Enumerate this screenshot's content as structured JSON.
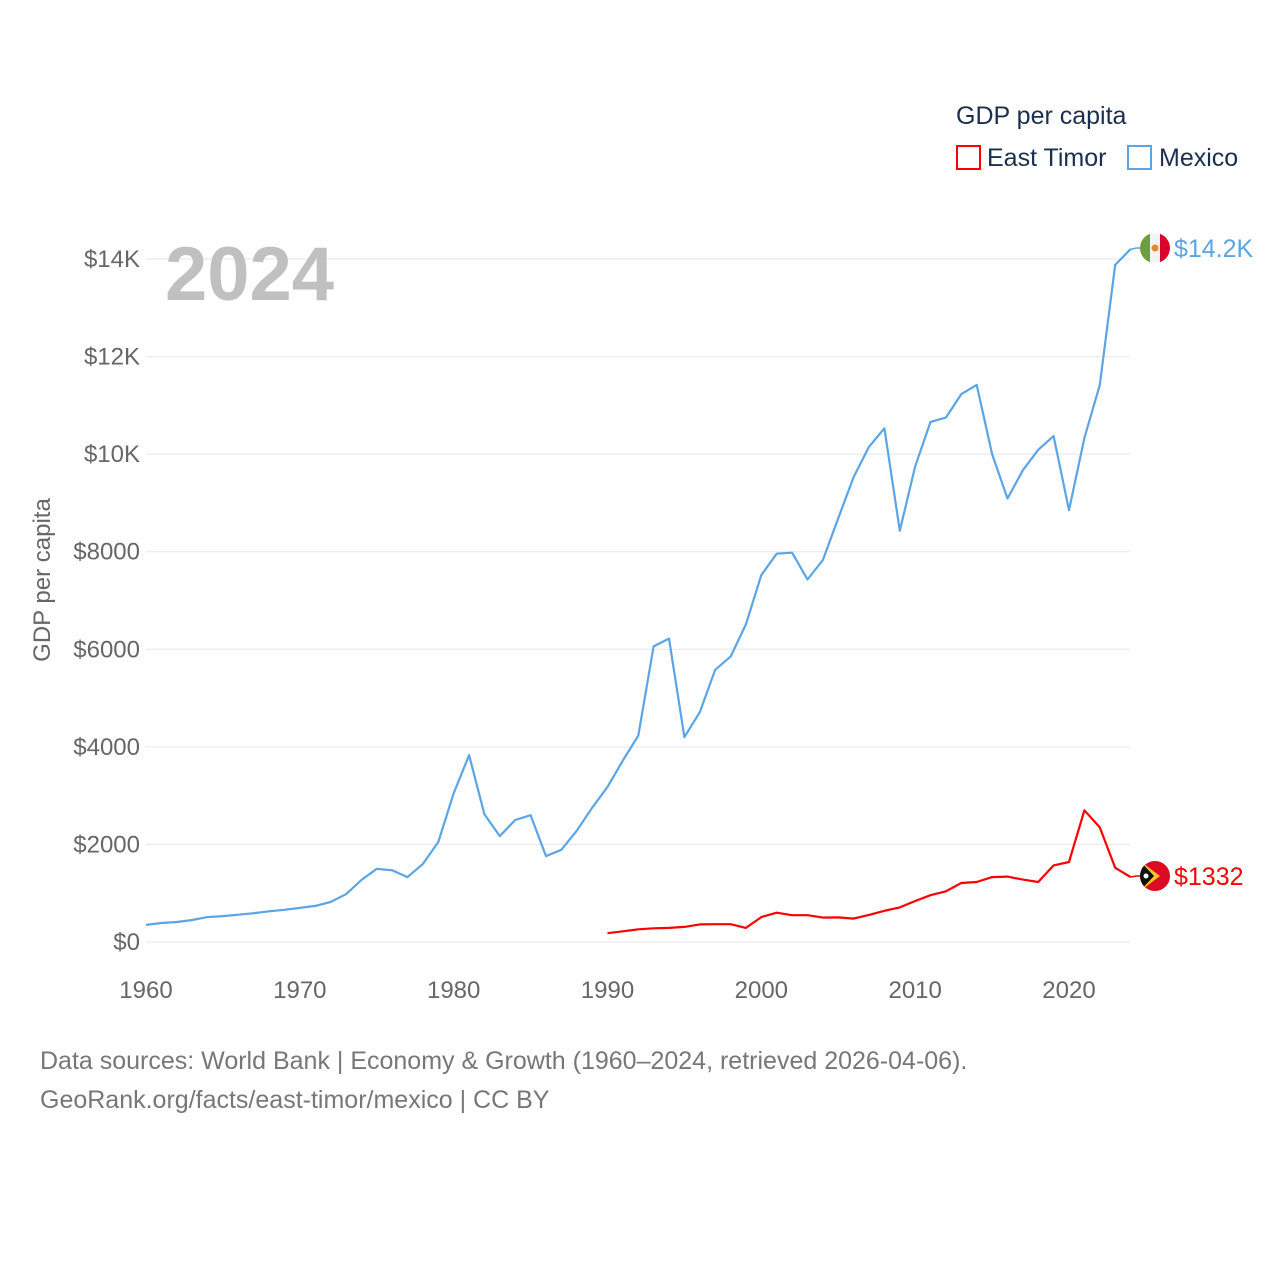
{
  "chart_data": {
    "type": "line",
    "title": "GDP per capita",
    "year_label": "2024",
    "xlabel": "",
    "ylabel": "GDP per capita",
    "xlim": [
      1960,
      2024
    ],
    "ylim": [
      0,
      14500
    ],
    "x_ticks": [
      1960,
      1970,
      1980,
      1990,
      2000,
      2010,
      2020
    ],
    "y_ticks": [
      0,
      2000,
      4000,
      6000,
      8000,
      10000,
      12000,
      14000
    ],
    "y_tick_labels": [
      "$0",
      "$2000",
      "$4000",
      "$6000",
      "$8000",
      "$10K",
      "$12K",
      "$14K"
    ],
    "grid": true,
    "legend_position": "top-right",
    "series": [
      {
        "name": "East Timor",
        "color": "#ff0000",
        "end_label": "$1332",
        "flag": "east-timor-flag",
        "x": [
          1990,
          1991,
          1992,
          1993,
          1994,
          1995,
          1996,
          1997,
          1998,
          1999,
          2000,
          2001,
          2002,
          2003,
          2004,
          2005,
          2006,
          2007,
          2008,
          2009,
          2010,
          2011,
          2012,
          2013,
          2014,
          2015,
          2016,
          2017,
          2018,
          2019,
          2020,
          2021,
          2022,
          2023,
          2024
        ],
        "values": [
          180,
          220,
          260,
          280,
          290,
          310,
          360,
          365,
          365,
          290,
          510,
          600,
          550,
          550,
          500,
          505,
          480,
          555,
          640,
          710,
          840,
          960,
          1040,
          1210,
          1230,
          1330,
          1340,
          1280,
          1230,
          1570,
          1640,
          2700,
          2350,
          1520,
          1332
        ]
      },
      {
        "name": "Mexico",
        "color": "#5ba4e6",
        "end_label": "$14.2K",
        "flag": "mexico-flag",
        "x": [
          1960,
          1961,
          1962,
          1963,
          1964,
          1965,
          1966,
          1967,
          1968,
          1969,
          1970,
          1971,
          1972,
          1973,
          1974,
          1975,
          1976,
          1977,
          1978,
          1979,
          1980,
          1981,
          1982,
          1983,
          1984,
          1985,
          1986,
          1987,
          1988,
          1989,
          1990,
          1991,
          1992,
          1993,
          1994,
          1995,
          1996,
          1997,
          1998,
          1999,
          2000,
          2001,
          2002,
          2003,
          2004,
          2005,
          2006,
          2007,
          2008,
          2009,
          2010,
          2011,
          2012,
          2013,
          2014,
          2015,
          2016,
          2017,
          2018,
          2019,
          2020,
          2021,
          2022,
          2023,
          2024
        ],
        "values": [
          350,
          390,
          410,
          450,
          510,
          530,
          560,
          590,
          630,
          660,
          700,
          740,
          820,
          980,
          1270,
          1500,
          1470,
          1330,
          1600,
          2050,
          3050,
          3830,
          2620,
          2170,
          2500,
          2600,
          1760,
          1890,
          2280,
          2750,
          3180,
          3720,
          4230,
          6060,
          6220,
          4200,
          4710,
          5580,
          5850,
          6510,
          7520,
          7960,
          7980,
          7430,
          7830,
          8690,
          9530,
          10150,
          10530,
          8430,
          9750,
          10660,
          10750,
          11230,
          11420,
          10000,
          9090,
          9670,
          10090,
          10370,
          8850,
          10330,
          11420,
          13880,
          14200
        ]
      }
    ]
  },
  "footer": {
    "line1": "Data sources: World Bank | Economy & Growth (1960–2024, retrieved 2026-04-06).",
    "line2": "GeoRank.org/facts/east-timor/mexico | CC BY"
  }
}
